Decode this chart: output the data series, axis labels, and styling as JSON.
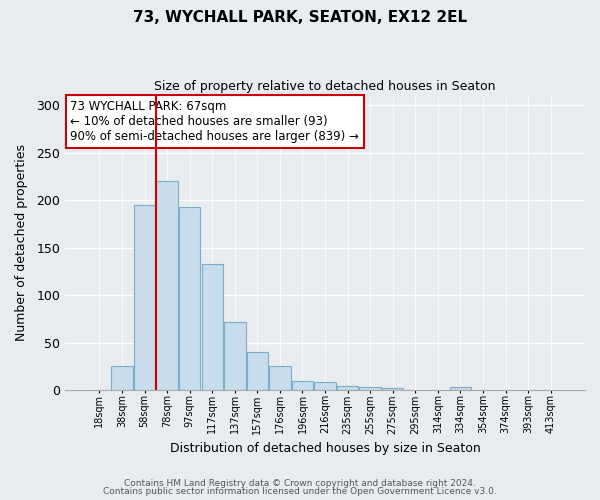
{
  "title": "73, WYCHALL PARK, SEATON, EX12 2EL",
  "subtitle": "Size of property relative to detached houses in Seaton",
  "xlabel": "Distribution of detached houses by size in Seaton",
  "ylabel": "Number of detached properties",
  "bar_labels": [
    "18sqm",
    "38sqm",
    "58sqm",
    "78sqm",
    "97sqm",
    "117sqm",
    "137sqm",
    "157sqm",
    "176sqm",
    "196sqm",
    "216sqm",
    "235sqm",
    "255sqm",
    "275sqm",
    "295sqm",
    "314sqm",
    "334sqm",
    "354sqm",
    "374sqm",
    "393sqm",
    "413sqm"
  ],
  "bar_values": [
    0,
    25,
    195,
    220,
    193,
    133,
    72,
    40,
    25,
    10,
    8,
    4,
    3,
    2,
    0,
    0,
    3,
    0,
    0,
    0,
    0
  ],
  "bar_color": "#c8dcec",
  "bar_edge_color": "#7aaec8",
  "figure_bg": "#e8ecf0",
  "plot_bg": "#e8ecf0",
  "grid_color": "#ffffff",
  "vline_x": 2.5,
  "vline_color": "#cc0000",
  "ylim": [
    0,
    310
  ],
  "yticks": [
    0,
    50,
    100,
    150,
    200,
    250,
    300
  ],
  "annotation_title": "73 WYCHALL PARK: 67sqm",
  "annotation_line1": "← 10% of detached houses are smaller (93)",
  "annotation_line2": "90% of semi-detached houses are larger (839) →",
  "annotation_box_color": "#ffffff",
  "annotation_box_edge": "#cc0000",
  "footer1": "Contains HM Land Registry data © Crown copyright and database right 2024.",
  "footer2": "Contains public sector information licensed under the Open Government Licence v3.0."
}
